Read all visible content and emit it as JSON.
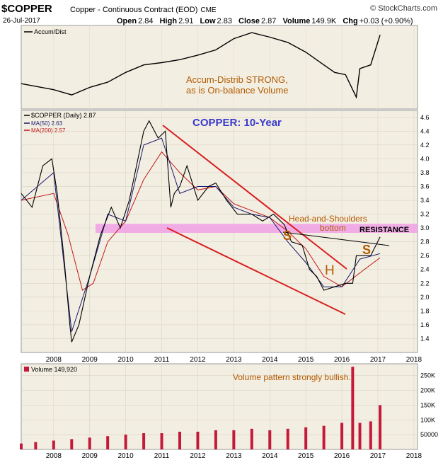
{
  "header": {
    "symbol": "$COPPER",
    "description": "Copper - Continuous Contract (EOD)",
    "exchange": "CME",
    "brand": "© StockCharts.com",
    "date": "26-Jul-2017",
    "ohlc": {
      "open_label": "Open",
      "open": "2.84",
      "high_label": "High",
      "high": "2.91",
      "low_label": "Low",
      "low": "2.83",
      "close_label": "Close",
      "close": "2.87",
      "volume_label": "Volume",
      "volume": "149.9K",
      "chg_label": "Chg",
      "chg": "+0.03 (+0.90%)"
    }
  },
  "panels": {
    "accum": {
      "legend": "Accum/Dist",
      "annotation_line1": "Accum-Distrib STRONG,",
      "annotation_line2": "as is On-balance Volume"
    },
    "price": {
      "legend": "$COPPER (Daily) 2.87",
      "ma50": "MA(50) 2.63",
      "ma200": "MA(200) 2.57",
      "title": "COPPER: 10-Year",
      "hs_line1": "Head-and-Shoulders",
      "hs_line2": "bottom",
      "resistance": "RESISTANCE",
      "s_left": "S",
      "h_label": "H",
      "s_right": "S"
    },
    "volume": {
      "legend": "Volume 149,920",
      "annotation": "Volume pattern strongly bullish."
    }
  },
  "colors": {
    "price_line": "#000000",
    "ma50": "#1a1a6e",
    "ma200": "#c01818",
    "trend_channel": "#d81e1e",
    "resistance_band": "#f0a0e6",
    "annotation_brown": "#b25a00",
    "title_blue": "#3a3acc",
    "volume_bars": "#c41a3a",
    "panel_bg": "#f3eee2"
  },
  "chart_data": [
    {
      "type": "line",
      "title": "",
      "series": [
        {
          "name": "Accum/Dist",
          "x": [
            2007.6,
            2008.5,
            2009.0,
            2009.5,
            2010.0,
            2010.5,
            2011.0,
            2011.5,
            2012.0,
            2012.5,
            2013.0,
            2013.5,
            2014.0,
            2014.5,
            2015.0,
            2015.5,
            2016.0,
            2016.3,
            2016.6,
            2016.9,
            2017.0,
            2017.3,
            2017.56
          ],
          "values": [
            0.3,
            0.22,
            0.15,
            0.25,
            0.32,
            0.45,
            0.55,
            0.58,
            0.62,
            0.68,
            0.75,
            0.9,
            0.98,
            0.92,
            0.85,
            0.72,
            0.55,
            0.45,
            0.42,
            0.12,
            0.5,
            0.55,
            0.95
          ]
        }
      ],
      "note_y": "relative level"
    },
    {
      "type": "line",
      "title": "COPPER: 10-Year",
      "xlabel": "",
      "ylabel": "",
      "x_ticks": [
        "2008",
        "2009",
        "2010",
        "2011",
        "2012",
        "2013",
        "2014",
        "2015",
        "2016",
        "2017",
        "2018"
      ],
      "y_ticks": [
        "1.4",
        "1.6",
        "1.8",
        "2.0",
        "2.2",
        "2.4",
        "2.6",
        "2.8",
        "3.0",
        "3.2",
        "3.4",
        "3.6",
        "3.8",
        "4.0",
        "4.2",
        "4.4",
        "4.6"
      ],
      "ylim": [
        1.2,
        4.7
      ],
      "series": [
        {
          "name": "$COPPER (Daily)",
          "x": [
            2007.6,
            2007.9,
            2008.2,
            2008.45,
            2008.6,
            2008.8,
            2008.95,
            2009.0,
            2009.2,
            2009.5,
            2009.8,
            2010.1,
            2010.35,
            2010.6,
            2010.8,
            2011.0,
            2011.15,
            2011.4,
            2011.6,
            2011.75,
            2011.85,
            2012.0,
            2012.2,
            2012.5,
            2012.8,
            2013.0,
            2013.3,
            2013.6,
            2014.0,
            2014.3,
            2014.6,
            2014.9,
            2015.1,
            2015.4,
            2015.6,
            2015.8,
            2016.0,
            2016.3,
            2016.6,
            2016.8,
            2016.9,
            2017.0,
            2017.3,
            2017.56
          ],
          "values": [
            3.5,
            3.3,
            3.9,
            4.0,
            3.5,
            2.5,
            1.6,
            1.35,
            1.6,
            2.3,
            2.9,
            3.3,
            3.0,
            3.4,
            3.9,
            4.4,
            4.55,
            4.3,
            4.4,
            3.3,
            3.5,
            3.6,
            3.9,
            3.4,
            3.6,
            3.65,
            3.4,
            3.2,
            3.2,
            3.1,
            3.2,
            3.05,
            2.8,
            2.75,
            2.4,
            2.3,
            2.1,
            2.15,
            2.2,
            2.2,
            2.6,
            2.6,
            2.6,
            2.87
          ]
        },
        {
          "name": "MA(50)",
          "x": [
            2007.6,
            2008.5,
            2009.0,
            2009.5,
            2010.0,
            2010.5,
            2011.0,
            2011.5,
            2012.0,
            2012.5,
            2013.0,
            2013.5,
            2014.0,
            2014.5,
            2015.0,
            2015.5,
            2016.0,
            2016.5,
            2017.0,
            2017.56
          ],
          "values": [
            3.4,
            3.8,
            1.5,
            2.3,
            3.2,
            3.1,
            4.2,
            4.3,
            3.5,
            3.6,
            3.6,
            3.3,
            3.2,
            3.15,
            2.8,
            2.5,
            2.15,
            2.15,
            2.55,
            2.63
          ]
        },
        {
          "name": "MA(200)",
          "x": [
            2007.6,
            2008.5,
            2008.9,
            2009.3,
            2009.6,
            2010.0,
            2010.5,
            2011.0,
            2011.5,
            2012.0,
            2012.5,
            2013.0,
            2013.5,
            2014.0,
            2014.5,
            2015.0,
            2015.5,
            2016.0,
            2016.5,
            2017.0,
            2017.56
          ],
          "values": [
            3.4,
            3.5,
            2.9,
            2.1,
            2.2,
            2.8,
            3.1,
            3.7,
            4.1,
            3.8,
            3.55,
            3.6,
            3.35,
            3.25,
            3.15,
            2.95,
            2.7,
            2.3,
            2.15,
            2.35,
            2.57
          ]
        }
      ],
      "annotations": [
        "Head-and-Shoulders",
        "bottom",
        "RESISTANCE",
        "S",
        "H",
        "S"
      ],
      "resistance_band": [
        2.93,
        3.06
      ]
    },
    {
      "type": "bar",
      "title": "",
      "y_ticks": [
        "50000",
        "100K",
        "150K",
        "200K",
        "250K"
      ],
      "ylim": [
        0,
        290000
      ],
      "series": [
        {
          "name": "Volume",
          "x": [
            2007.6,
            2008.0,
            2008.5,
            2009.0,
            2009.5,
            2010.0,
            2010.5,
            2011.0,
            2011.5,
            2012.0,
            2012.5,
            2013.0,
            2013.5,
            2014.0,
            2014.5,
            2015.0,
            2015.5,
            2016.0,
            2016.5,
            2016.8,
            2017.0,
            2017.3,
            2017.56
          ],
          "values": [
            20000,
            25000,
            30000,
            35000,
            40000,
            45000,
            50000,
            55000,
            55000,
            60000,
            60000,
            65000,
            65000,
            70000,
            65000,
            70000,
            75000,
            80000,
            90000,
            280000,
            90000,
            95000,
            150000
          ]
        }
      ]
    }
  ]
}
